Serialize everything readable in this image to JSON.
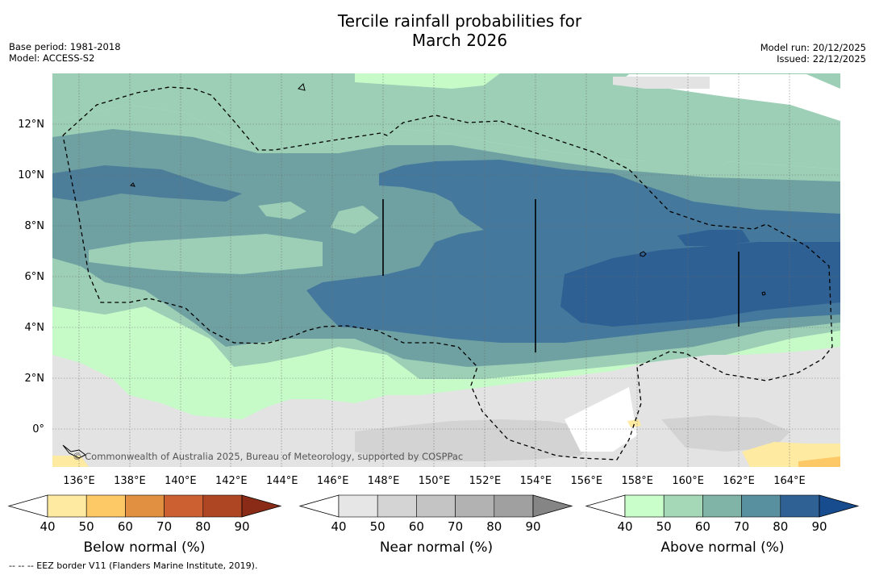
{
  "header": {
    "title_line1": "Tercile rainfall probabilities for",
    "title_line2": "March 2026",
    "base_period": "Base period: 1981-2018",
    "model": "Model: ACCESS-S2",
    "model_run": "Model run: 20/12/2025",
    "issued": "Issued: 22/12/2025"
  },
  "map": {
    "lon_range": [
      134.5,
      165.5
    ],
    "lat_range": [
      -1.5,
      14
    ],
    "lon_ticks": [
      "136°E",
      "138°E",
      "140°E",
      "142°E",
      "144°E",
      "146°E",
      "148°E",
      "150°E",
      "152°E",
      "154°E",
      "156°E",
      "158°E",
      "160°E",
      "162°E",
      "164°E"
    ],
    "lat_ticks": [
      "0°",
      "2°N",
      "4°N",
      "6°N",
      "8°N",
      "10°N",
      "12°N"
    ],
    "copyright": "© Commonwealth of Australia 2025, Bureau of Meteorology, supported by COSPPac"
  },
  "legends": {
    "below": {
      "title": "Below normal (%)",
      "ticks": [
        "40",
        "50",
        "60",
        "70",
        "80",
        "90"
      ],
      "colors": [
        "#ffffff",
        "#feeaa0",
        "#fdc866",
        "#e09040",
        "#cc6030",
        "#ae4523",
        "#8a2b17"
      ]
    },
    "near": {
      "title": "Near normal (%)",
      "ticks": [
        "40",
        "50",
        "60",
        "70",
        "80",
        "90"
      ],
      "colors": [
        "#ffffff",
        "#e6e6e6",
        "#d4d4d4",
        "#c4c4c4",
        "#b2b2b2",
        "#a0a0a0",
        "#858585"
      ]
    },
    "above": {
      "title": "Above normal (%)",
      "ticks": [
        "40",
        "50",
        "60",
        "70",
        "80",
        "90"
      ],
      "colors": [
        "#ffffff",
        "#c9fdca",
        "#a5d8b7",
        "#7fb4a6",
        "#5890a0",
        "#2f6195",
        "#174d8e"
      ]
    }
  },
  "footer": {
    "eez_note": "--  --  -- EEZ border V11 (Flanders Marine Institute, 2019)."
  }
}
